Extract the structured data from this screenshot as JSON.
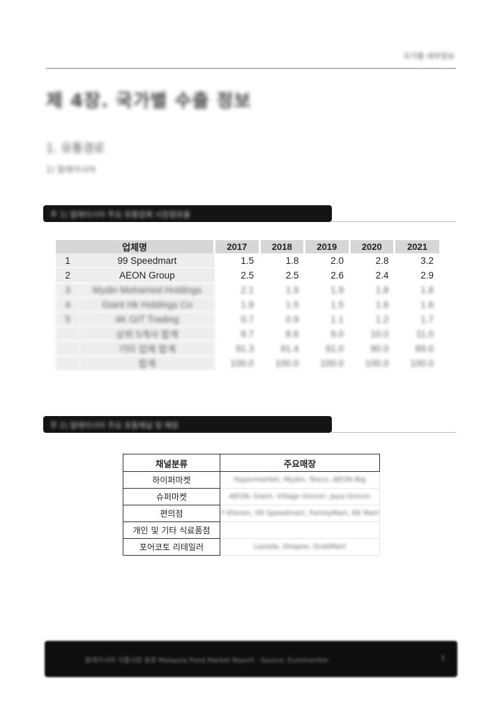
{
  "header": {
    "label": "국가별 세부정보"
  },
  "chapter_title": "제 4장. 국가별 수출 정보",
  "section_title": "1. 유통경로",
  "subsection_title": "1) 말레이시아",
  "table1": {
    "heading": "주 1) 말레이시아 주요 유통업체 시장점유율",
    "columns": [
      "업체명",
      "2017",
      "2018",
      "2019",
      "2020",
      "2021"
    ],
    "rows": [
      {
        "idx": "1",
        "name": "99 Speedmart",
        "values": [
          "1.5",
          "1.8",
          "2.0",
          "2.8",
          "3.2"
        ],
        "faded": false
      },
      {
        "idx": "2",
        "name": "AEON Group",
        "values": [
          "2.5",
          "2.5",
          "2.6",
          "2.4",
          "2.9"
        ],
        "faded": false
      },
      {
        "idx": "3",
        "name": "Mydin Mohamed Holdings",
        "values": [
          "2.1",
          "1.9",
          "1.9",
          "1.8",
          "1.8"
        ],
        "faded": true
      },
      {
        "idx": "4",
        "name": "Giant Hk Holdings Co",
        "values": [
          "1.9",
          "1.5",
          "1.5",
          "1.6",
          "1.6"
        ],
        "faded": true
      },
      {
        "idx": "5",
        "name": "4K GIT Trading",
        "values": [
          "0.7",
          "0.9",
          "1.1",
          "1.2",
          "1.7"
        ],
        "faded": true
      },
      {
        "idx": "",
        "name": "상위 5개사 합계",
        "values": [
          "8.7",
          "8.6",
          "9.0",
          "10.0",
          "11.0"
        ],
        "faded": true
      },
      {
        "idx": "",
        "name": "기타 업체 합계",
        "values": [
          "91.3",
          "91.4",
          "91.0",
          "90.0",
          "89.0"
        ],
        "faded": true
      },
      {
        "idx": "",
        "name": "합계",
        "values": [
          "100.0",
          "100.0",
          "100.0",
          "100.0",
          "100.0"
        ],
        "faded": true
      }
    ]
  },
  "table2": {
    "heading": "주 2) 말레이시아 주요 유통채널 및 매장",
    "columns": [
      "채널분류",
      "주요매장"
    ],
    "rows": [
      {
        "category": "하이퍼마켓",
        "stores": "Hypermarket, Mydin, Tesco, AEON Big"
      },
      {
        "category": "슈퍼마켓",
        "stores": "AEON, Giant, Village Grocer, Jaya Grocer"
      },
      {
        "category": "편의점",
        "stores": "7-Eleven, 99 Speedmart, FamilyMart, KK Mart"
      },
      {
        "category": "개인 및 기타 식료품점",
        "stores": ""
      },
      {
        "category": "포어코토 리테일러",
        "stores": "Lazada, Shopee, GrabMart"
      }
    ]
  },
  "footer": {
    "text": "말레이시아 식품시장 동향 Malaysia Food Market Report · Source: Euromonitor",
    "page": "3"
  }
}
